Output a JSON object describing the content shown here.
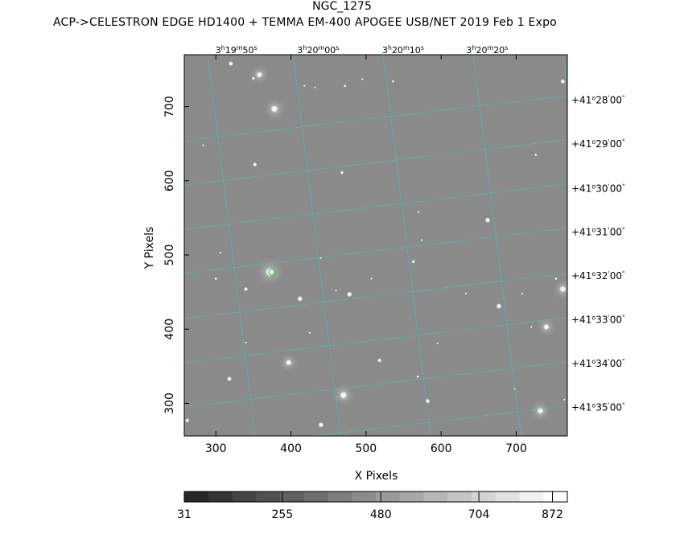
{
  "chart_data": {
    "type": "heatmap",
    "title": "NGC_1275",
    "subtitle": "ACP->CELESTRON EDGE HD1400 + TEMMA EM-400 APOGEE USB/NET   2019 Feb  1    Expo",
    "xlabel": "X Pixels",
    "ylabel": "Y Pixels",
    "xlim": [
      258,
      768
    ],
    "ylim": [
      256,
      770
    ],
    "x_ticks": [
      300,
      400,
      500,
      600,
      700
    ],
    "y_ticks": [
      300,
      400,
      500,
      600,
      700
    ],
    "ra_labels": [
      {
        "h": "3",
        "m": "19",
        "s": "50",
        "x": 338
      },
      {
        "h": "3",
        "m": "20",
        "s": "00",
        "x": 447
      },
      {
        "h": "3",
        "m": "20",
        "s": "10",
        "x": 560
      },
      {
        "h": "3",
        "m": "20",
        "s": "20",
        "x": 672
      }
    ],
    "dec_labels": [
      {
        "d": "+41",
        "m": "28",
        "s": "00",
        "y": 713
      },
      {
        "d": "+41",
        "m": "29",
        "s": "00",
        "y": 654
      },
      {
        "d": "+41",
        "m": "30",
        "s": "00",
        "y": 594
      },
      {
        "d": "+41",
        "m": "31",
        "s": "00",
        "y": 535
      },
      {
        "d": "+41",
        "m": "32",
        "s": "00",
        "y": 476
      },
      {
        "d": "+41",
        "m": "33",
        "s": "00",
        "y": 417
      },
      {
        "d": "+41",
        "m": "34",
        "s": "00",
        "y": 358
      },
      {
        "d": "+41",
        "m": "35",
        "s": "00",
        "y": 299
      }
    ],
    "target_marker": {
      "x": 375,
      "y": 477,
      "color": "#22cc22"
    },
    "grid_color": "#3fc8c8",
    "sky_color": "#8a8a8a",
    "stars": [
      {
        "x": 320,
        "y": 758,
        "m": 7
      },
      {
        "x": 358,
        "y": 743,
        "m": 9
      },
      {
        "x": 350,
        "y": 738,
        "m": 5
      },
      {
        "x": 762,
        "y": 734,
        "m": 7
      },
      {
        "x": 536,
        "y": 734,
        "m": 4
      },
      {
        "x": 495,
        "y": 737,
        "m": 3
      },
      {
        "x": 472,
        "y": 728,
        "m": 4
      },
      {
        "x": 418,
        "y": 728,
        "m": 3
      },
      {
        "x": 432,
        "y": 726,
        "m": 3
      },
      {
        "x": 378,
        "y": 697,
        "m": 11
      },
      {
        "x": 352,
        "y": 622,
        "m": 6
      },
      {
        "x": 726,
        "y": 635,
        "m": 4
      },
      {
        "x": 468,
        "y": 611,
        "m": 5
      },
      {
        "x": 662,
        "y": 547,
        "m": 8
      },
      {
        "x": 570,
        "y": 558,
        "m": 3
      },
      {
        "x": 574,
        "y": 520,
        "m": 3
      },
      {
        "x": 563,
        "y": 491,
        "m": 5
      },
      {
        "x": 300,
        "y": 468,
        "m": 4
      },
      {
        "x": 340,
        "y": 454,
        "m": 6
      },
      {
        "x": 478,
        "y": 447,
        "m": 8
      },
      {
        "x": 412,
        "y": 441,
        "m": 8
      },
      {
        "x": 460,
        "y": 452,
        "m": 3
      },
      {
        "x": 677,
        "y": 431,
        "m": 8
      },
      {
        "x": 708,
        "y": 448,
        "m": 3
      },
      {
        "x": 762,
        "y": 454,
        "m": 10
      },
      {
        "x": 753,
        "y": 468,
        "m": 4
      },
      {
        "x": 720,
        "y": 403,
        "m": 3
      },
      {
        "x": 740,
        "y": 403,
        "m": 9
      },
      {
        "x": 397,
        "y": 355,
        "m": 9
      },
      {
        "x": 518,
        "y": 358,
        "m": 6
      },
      {
        "x": 318,
        "y": 333,
        "m": 7
      },
      {
        "x": 569,
        "y": 336,
        "m": 4
      },
      {
        "x": 470,
        "y": 311,
        "m": 11
      },
      {
        "x": 582,
        "y": 303,
        "m": 7
      },
      {
        "x": 732,
        "y": 290,
        "m": 10
      },
      {
        "x": 262,
        "y": 277,
        "m": 6
      },
      {
        "x": 440,
        "y": 271,
        "m": 8
      },
      {
        "x": 764,
        "y": 305,
        "m": 3
      },
      {
        "x": 372,
        "y": 477,
        "m": 14
      },
      {
        "x": 440,
        "y": 496,
        "m": 3
      },
      {
        "x": 507,
        "y": 468,
        "m": 3
      },
      {
        "x": 595,
        "y": 381,
        "m": 3
      },
      {
        "x": 425,
        "y": 395,
        "m": 3
      },
      {
        "x": 698,
        "y": 320,
        "m": 3
      },
      {
        "x": 633,
        "y": 448,
        "m": 3
      },
      {
        "x": 340,
        "y": 382,
        "m": 3
      },
      {
        "x": 283,
        "y": 648,
        "m": 3
      },
      {
        "x": 306,
        "y": 503,
        "m": 3
      }
    ],
    "colorbar": {
      "labels": [
        "31",
        "255",
        "480",
        "704",
        "872"
      ],
      "label_values": [
        31,
        255,
        480,
        704,
        872
      ],
      "min": 31,
      "max": 906,
      "steps": 16
    }
  }
}
